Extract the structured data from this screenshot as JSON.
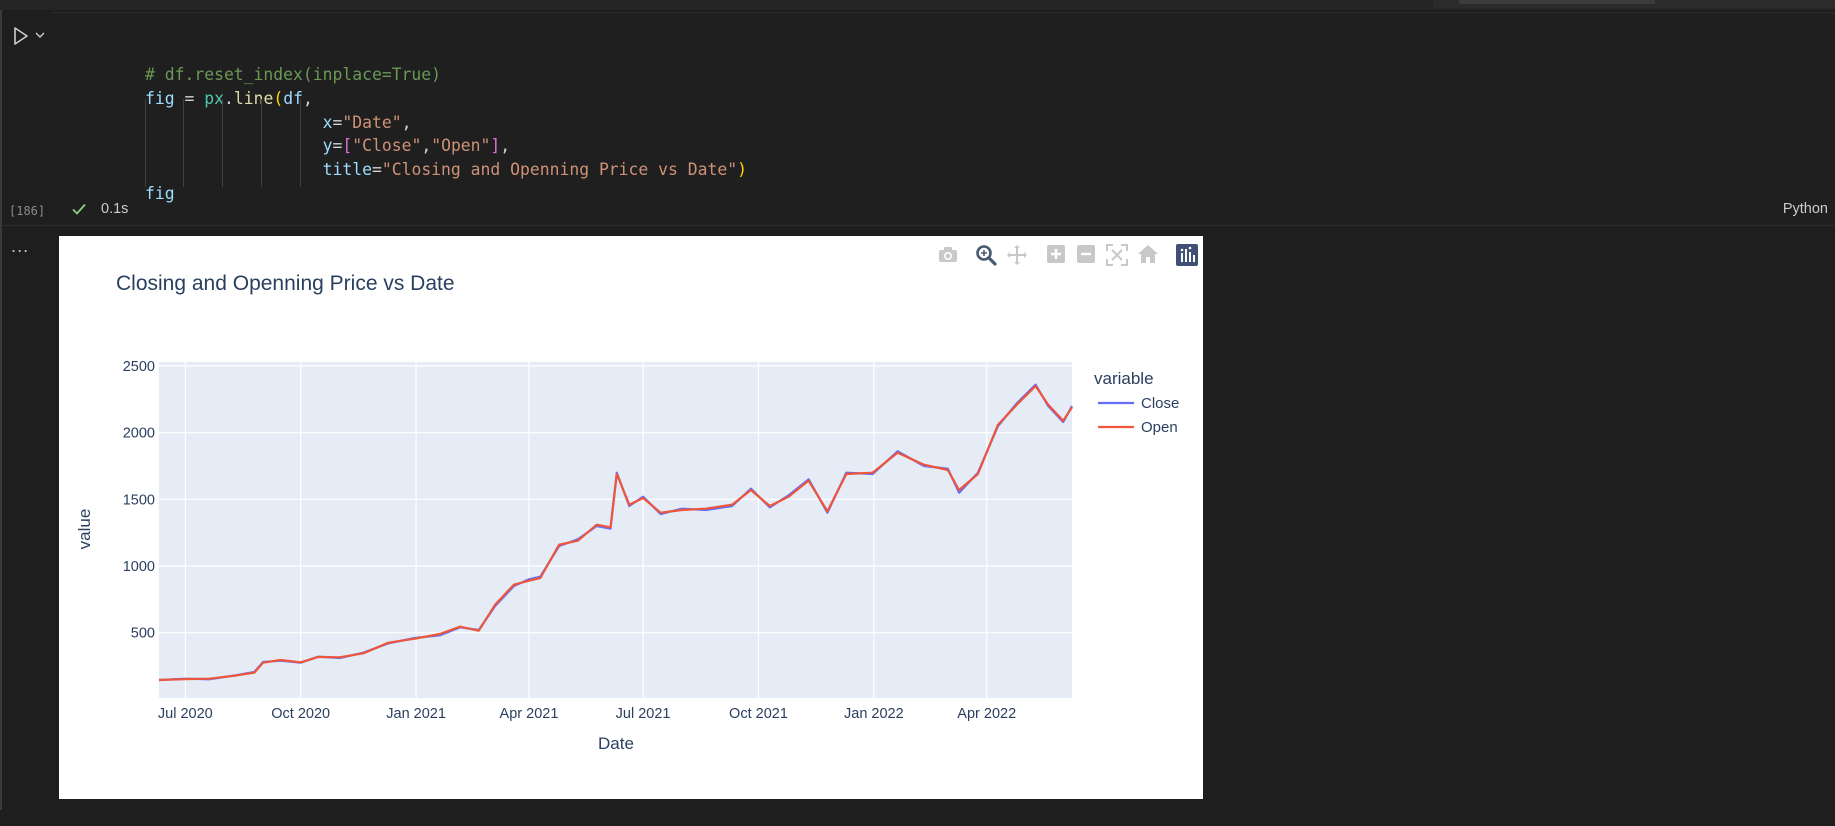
{
  "cell": {
    "code_lines": [
      [
        {
          "t": "# df.reset_index(inplace=True)",
          "c": "com"
        }
      ],
      [
        {
          "t": "fig",
          "c": "var"
        },
        {
          "t": " = ",
          "c": "op"
        },
        {
          "t": "px",
          "c": "mod"
        },
        {
          "t": ".",
          "c": "op"
        },
        {
          "t": "line",
          "c": "fn"
        },
        {
          "t": "(",
          "c": "br1"
        },
        {
          "t": "df",
          "c": "var"
        },
        {
          "t": ",",
          "c": "op"
        }
      ],
      [
        {
          "t": "                  ",
          "c": "op"
        },
        {
          "t": "x",
          "c": "var"
        },
        {
          "t": "=",
          "c": "op"
        },
        {
          "t": "\"Date\"",
          "c": "str"
        },
        {
          "t": ",",
          "c": "op"
        }
      ],
      [
        {
          "t": "                  ",
          "c": "op"
        },
        {
          "t": "y",
          "c": "var"
        },
        {
          "t": "=",
          "c": "op"
        },
        {
          "t": "[",
          "c": "br2"
        },
        {
          "t": "\"Close\"",
          "c": "str"
        },
        {
          "t": ",",
          "c": "op"
        },
        {
          "t": "\"Open\"",
          "c": "str"
        },
        {
          "t": "]",
          "c": "br2"
        },
        {
          "t": ",",
          "c": "op"
        }
      ],
      [
        {
          "t": "                  ",
          "c": "op"
        },
        {
          "t": "title",
          "c": "var"
        },
        {
          "t": "=",
          "c": "op"
        },
        {
          "t": "\"Closing and Openning Price vs Date\"",
          "c": "str"
        },
        {
          "t": ")",
          "c": "br1"
        }
      ],
      [
        {
          "t": "fig",
          "c": "var"
        }
      ]
    ],
    "execution_count": "[186]",
    "execution_time": "0.1s",
    "language": "Python",
    "output_menu": "...",
    "icons": {
      "run": "run-icon",
      "run_options": "chevron-down-icon",
      "status": "check-icon"
    }
  },
  "plot_toolbar": {
    "icons": [
      "camera-icon",
      "zoom-icon",
      "pan-icon",
      "zoom-in-icon",
      "zoom-out-icon",
      "autoscale-icon",
      "reset-axes-icon",
      "plotly-logo-icon"
    ]
  },
  "chart_data": {
    "type": "line",
    "title": "Closing and Openning Price vs Date",
    "xlabel": "Date",
    "ylabel": "value",
    "x_ticks": [
      "Jul 2020",
      "Oct 2020",
      "Jan 2021",
      "Apr 2021",
      "Jul 2021",
      "Oct 2021",
      "Jan 2022",
      "Apr 2022"
    ],
    "y_ticks": [
      "500",
      "1000",
      "1500",
      "2000",
      "2500"
    ],
    "ylim": [
      10,
      2530
    ],
    "xlim": [
      "2020-06-10",
      "2022-06-08"
    ],
    "legend_title": "variable",
    "legend_position": "top-right",
    "grid": true,
    "colors": {
      "Close": "#636efa",
      "Open": "#ef553b",
      "plot_bg": "#e5ecf6"
    },
    "x": [
      "2020-06-10",
      "2020-07-01",
      "2020-07-20",
      "2020-08-10",
      "2020-08-25",
      "2020-09-01",
      "2020-09-15",
      "2020-10-01",
      "2020-10-15",
      "2020-11-01",
      "2020-11-20",
      "2020-12-10",
      "2020-12-31",
      "2021-01-20",
      "2021-02-05",
      "2021-02-20",
      "2021-03-05",
      "2021-03-20",
      "2021-04-01",
      "2021-04-10",
      "2021-04-25",
      "2021-05-10",
      "2021-05-25",
      "2021-06-05",
      "2021-06-10",
      "2021-06-20",
      "2021-07-01",
      "2021-07-15",
      "2021-08-01",
      "2021-08-20",
      "2021-09-10",
      "2021-09-25",
      "2021-10-10",
      "2021-10-25",
      "2021-11-10",
      "2021-11-25",
      "2021-12-10",
      "2021-12-31",
      "2022-01-20",
      "2022-02-10",
      "2022-03-01",
      "2022-03-10",
      "2022-03-25",
      "2022-04-10",
      "2022-04-25",
      "2022-05-10",
      "2022-05-20",
      "2022-06-01",
      "2022-06-08"
    ],
    "series": [
      {
        "name": "Close",
        "values": [
          145,
          155,
          150,
          180,
          205,
          280,
          290,
          275,
          320,
          310,
          350,
          420,
          460,
          480,
          540,
          520,
          700,
          850,
          900,
          920,
          1150,
          1200,
          1300,
          1280,
          1700,
          1450,
          1520,
          1390,
          1430,
          1420,
          1450,
          1580,
          1440,
          1530,
          1650,
          1400,
          1700,
          1690,
          1860,
          1750,
          1730,
          1550,
          1700,
          2050,
          2220,
          2360,
          2200,
          2080,
          2200
        ]
      },
      {
        "name": "Open",
        "values": [
          145,
          152,
          155,
          178,
          200,
          275,
          295,
          278,
          318,
          315,
          345,
          425,
          455,
          490,
          545,
          515,
          710,
          860,
          890,
          910,
          1160,
          1190,
          1310,
          1290,
          1690,
          1460,
          1510,
          1400,
          1420,
          1430,
          1460,
          1570,
          1450,
          1520,
          1640,
          1410,
          1690,
          1700,
          1850,
          1760,
          1720,
          1570,
          1690,
          2060,
          2210,
          2350,
          2210,
          2090,
          2190
        ]
      }
    ]
  }
}
